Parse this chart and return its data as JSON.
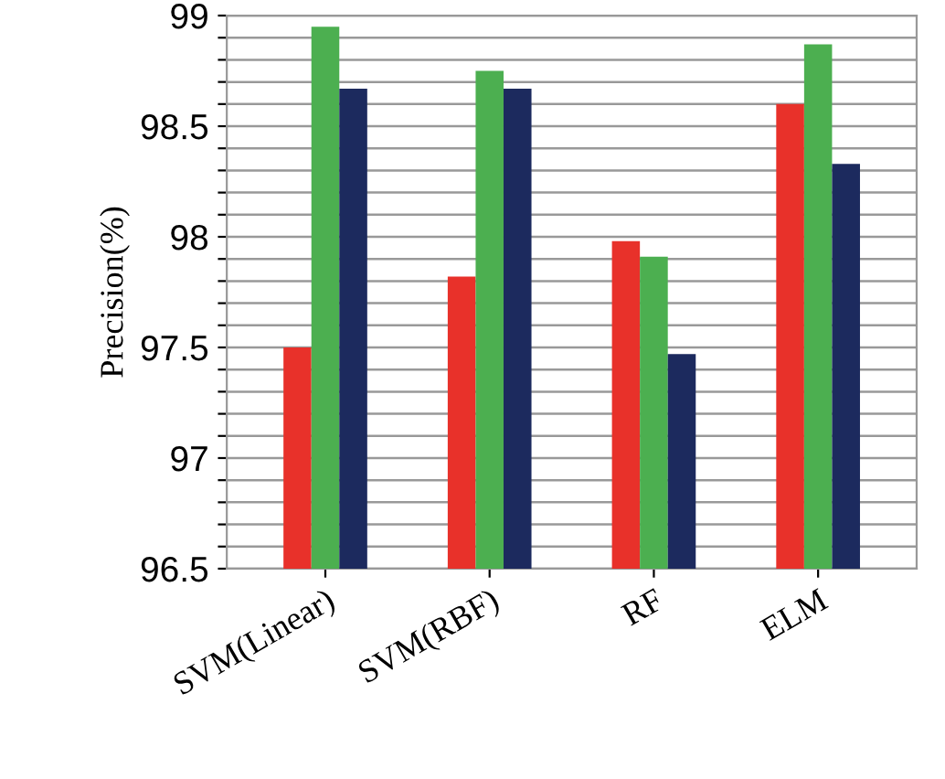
{
  "chart_data": {
    "type": "bar",
    "ylabel": "Precision(%)",
    "categories": [
      "SVM(Linear)",
      "SVM(RBF)",
      "RF",
      "ELM"
    ],
    "series": [
      {
        "color": "#e8312a",
        "values": [
          97.5,
          97.82,
          97.98,
          98.6
        ]
      },
      {
        "color": "#4caf50",
        "values": [
          98.95,
          98.75,
          97.91,
          98.87
        ]
      },
      {
        "color": "#1c2a5e",
        "values": [
          98.67,
          98.67,
          97.47,
          98.33
        ]
      }
    ],
    "ylim": [
      96.5,
      99
    ],
    "yticks": [
      96.5,
      {
        "value": 96.6,
        "label": null
      },
      {
        "value": 96.7,
        "label": null
      },
      {
        "value": 96.8,
        "label": null
      },
      {
        "value": 96.9,
        "label": null
      },
      97,
      {
        "value": 97.1,
        "label": null
      },
      {
        "value": 97.2,
        "label": null
      },
      {
        "value": 97.3,
        "label": null
      },
      {
        "value": 97.4,
        "label": null
      },
      97.5,
      {
        "value": 97.6,
        "label": null
      },
      {
        "value": 97.7,
        "label": null
      },
      {
        "value": 97.8,
        "label": null
      },
      {
        "value": 97.9,
        "label": null
      },
      98,
      {
        "value": 98.1,
        "label": null
      },
      {
        "value": 98.2,
        "label": null
      },
      {
        "value": 98.3,
        "label": null
      },
      {
        "value": 98.4,
        "label": null
      },
      98.5,
      {
        "value": 98.6,
        "label": null
      },
      {
        "value": 98.7,
        "label": null
      },
      {
        "value": 98.8,
        "label": null
      },
      {
        "value": 98.9,
        "label": null
      },
      99
    ],
    "grid": "y"
  }
}
